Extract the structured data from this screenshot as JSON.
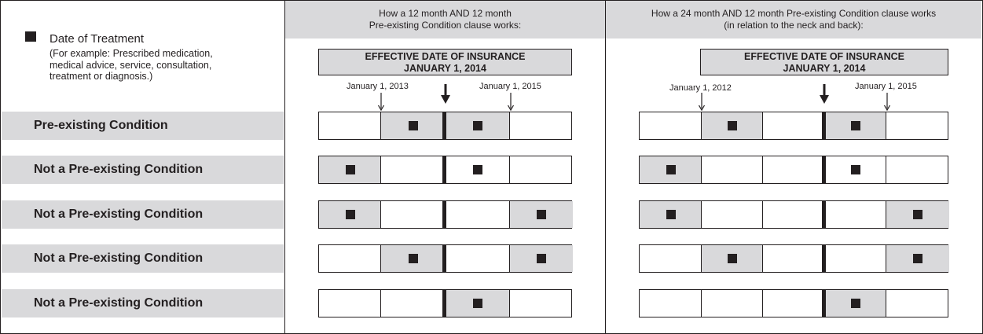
{
  "legend": {
    "marker_icon": "black-square",
    "title": "Date of Treatment",
    "note": "(For example: Prescribed medication,\nmedical advice, service, consultation,\ntreatment or diagnosis.)"
  },
  "rows": [
    {
      "label": "Pre-existing Condition"
    },
    {
      "label": "Not a Pre-existing Condition"
    },
    {
      "label": "Not a Pre-existing Condition"
    },
    {
      "label": "Not a Pre-existing Condition"
    },
    {
      "label": "Not a Pre-existing Condition"
    }
  ],
  "panels": [
    {
      "header": "How a 12 month AND 12 month\nPre-existing Condition clause works:",
      "effective_box": "EFFECTIVE DATE OF INSURANCE\nJANUARY 1, 2014",
      "dates": [
        "January 1, 2013",
        "January 1, 2015"
      ],
      "grid": [
        {
          "shaded": [
            false,
            true,
            true,
            false
          ],
          "marks": [
            false,
            true,
            true,
            false
          ]
        },
        {
          "shaded": [
            true,
            false,
            false,
            false
          ],
          "marks": [
            true,
            false,
            true,
            false
          ]
        },
        {
          "shaded": [
            true,
            false,
            false,
            true
          ],
          "marks": [
            true,
            false,
            false,
            true
          ]
        },
        {
          "shaded": [
            false,
            true,
            false,
            true
          ],
          "marks": [
            false,
            true,
            false,
            true
          ]
        },
        {
          "shaded": [
            false,
            false,
            true,
            false
          ],
          "marks": [
            false,
            false,
            true,
            false
          ]
        }
      ]
    },
    {
      "header": "How a 24 month AND 12 month Pre-existing Condition clause works\n(in relation to the neck and back):",
      "effective_box": "EFFECTIVE DATE OF INSURANCE\nJANUARY 1, 2014",
      "dates": [
        "January 1, 2012",
        "January 1, 2015"
      ],
      "grid": [
        {
          "shaded": [
            false,
            true,
            false,
            true,
            false
          ],
          "marks": [
            false,
            true,
            false,
            true,
            false
          ]
        },
        {
          "shaded": [
            true,
            false,
            false,
            false,
            false
          ],
          "marks": [
            true,
            false,
            false,
            true,
            false
          ]
        },
        {
          "shaded": [
            true,
            false,
            false,
            false,
            true
          ],
          "marks": [
            true,
            false,
            false,
            false,
            true
          ]
        },
        {
          "shaded": [
            false,
            true,
            false,
            false,
            true
          ],
          "marks": [
            false,
            true,
            false,
            false,
            true
          ]
        },
        {
          "shaded": [
            false,
            false,
            false,
            true,
            false
          ],
          "marks": [
            false,
            false,
            false,
            true,
            false
          ]
        }
      ]
    }
  ]
}
